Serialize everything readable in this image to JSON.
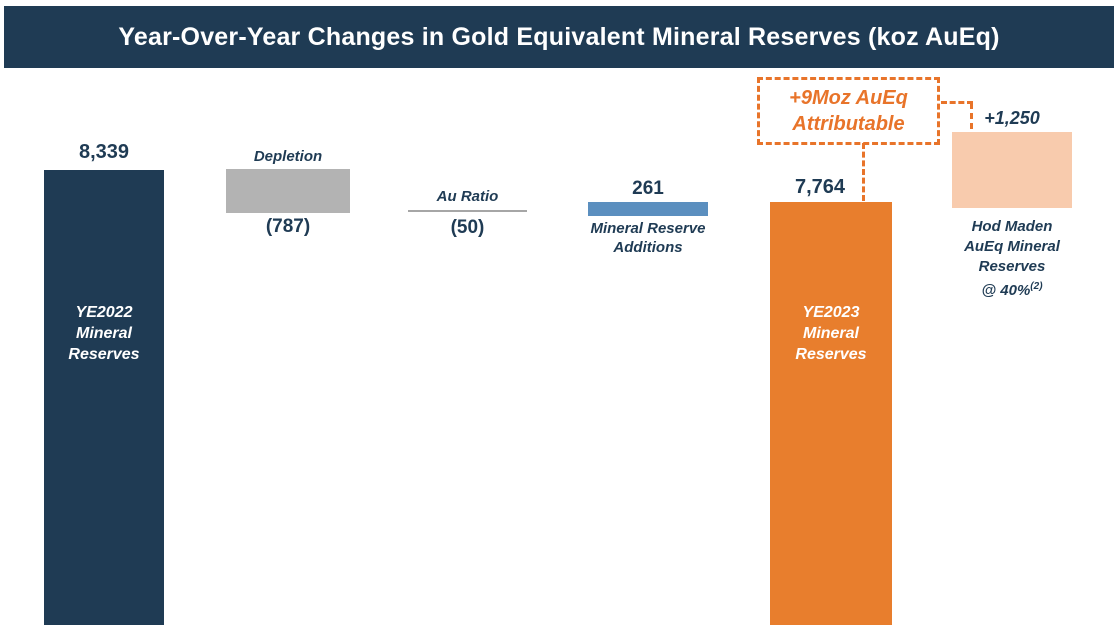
{
  "header": {
    "title": "Year-Over-Year Changes in Gold Equivalent Mineral Reserves (koz AuEq)"
  },
  "chart_data": {
    "type": "bar",
    "subtype": "waterfall",
    "unit": "koz AuEq",
    "title": "Year-Over-Year Changes in Gold Equivalent Mineral Reserves (koz AuEq)",
    "categories": [
      "YE2022 Mineral Reserves",
      "Depletion",
      "Au Ratio",
      "Mineral Reserve Additions",
      "YE2023 Mineral Reserves",
      "Hod Maden AuEq Mineral Reserves @ 40%"
    ],
    "values": [
      8339,
      -787,
      -50,
      261,
      7764,
      1250
    ],
    "value_labels": [
      "8,339",
      "(787)",
      "(50)",
      "261",
      "7,764",
      "+1,250"
    ],
    "bar_colors": [
      "#1F3B54",
      "#B3B3B3",
      null,
      "#5B8FBF",
      "#E87E2D",
      "#F8CBAD"
    ],
    "annotation": "+9Moz AuEq Attributable",
    "footnote_marker": "(2)",
    "ylim": [
      0,
      8339
    ],
    "grid": false,
    "legend": false
  },
  "bars": {
    "ye2022": {
      "value": "8,339",
      "label": "YE2022\nMineral\nReserves"
    },
    "depletion": {
      "name": "Depletion",
      "value": "(787)"
    },
    "au_ratio": {
      "name": "Au Ratio",
      "value": "(50)"
    },
    "additions": {
      "value": "261",
      "name": "Mineral Reserve\nAdditions"
    },
    "ye2023": {
      "value": "7,764",
      "label": "YE2023\nMineral\nReserves"
    },
    "hod_maden": {
      "value": "+1,250",
      "name": "Hod Maden\nAuEq Mineral\nReserves",
      "name_suffix": "@ 40%",
      "footnote_marker": "(2)"
    }
  },
  "callout": {
    "text": "+9Moz AuEq\nAttributable"
  },
  "colors": {
    "navy": "#1F3B54",
    "orange": "#E87E2D",
    "peach": "#F8CBAD",
    "gray": "#B3B3B3",
    "blue": "#5B8FBF",
    "line_gray": "#A6A6A6",
    "callout_orange": "#E8742A",
    "text_navy": "#1F3B54"
  }
}
